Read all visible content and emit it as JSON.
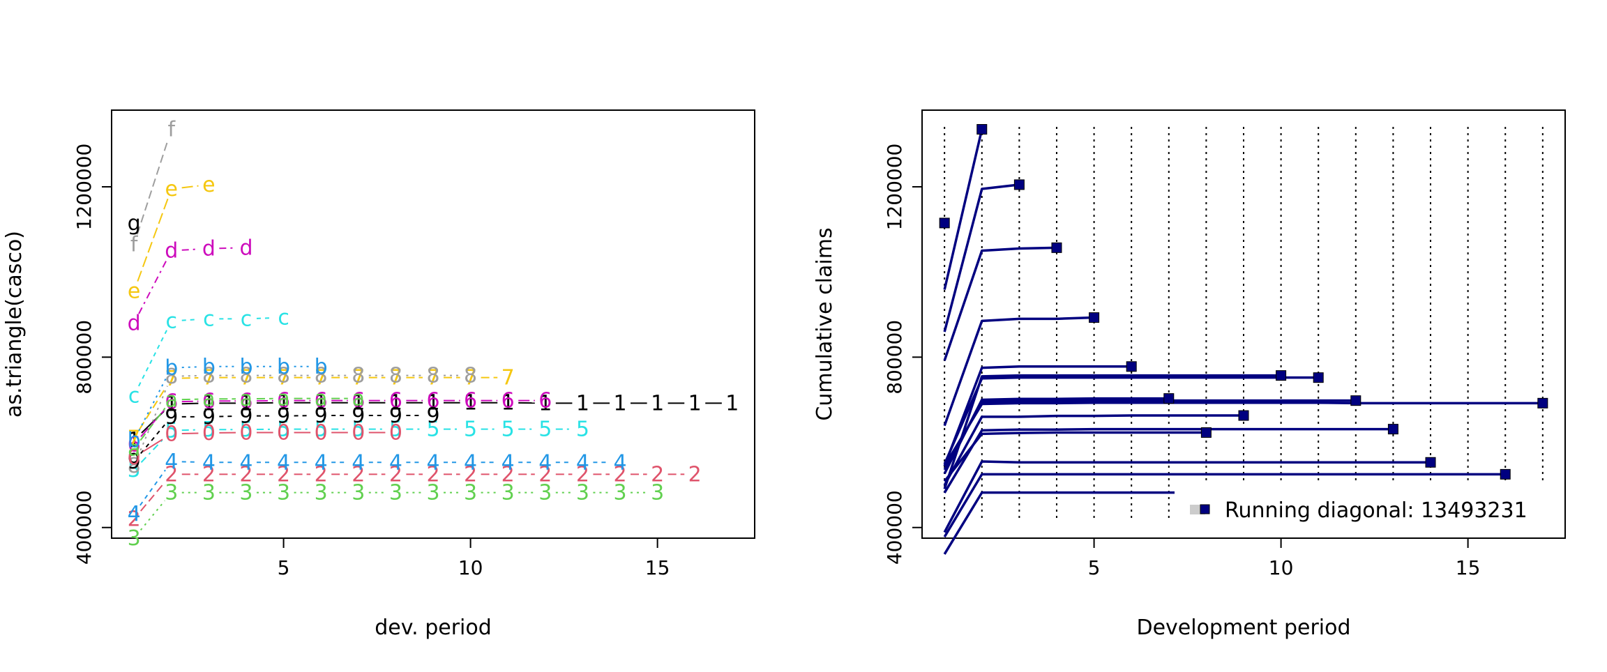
{
  "chart_data": [
    {
      "type": "line",
      "xlabel": "dev. period",
      "ylabel": "as.triangle(casco)",
      "xlim": [
        0.4,
        17.6
      ],
      "ylim": [
        375000,
        1380000
      ],
      "x_ticks": [
        5,
        10,
        15
      ],
      "y_ticks": [
        400000,
        800000,
        1200000
      ],
      "grid": false,
      "series": [
        {
          "label": "1",
          "color": "#000000",
          "values": [
            605000,
            690000,
            692000,
            692000,
            693000,
            693000,
            693000,
            693000,
            693000,
            693000,
            693000,
            692000,
            692000,
            692000,
            692000,
            692000,
            692000
          ]
        },
        {
          "label": "2",
          "color": "#DF536B",
          "values": [
            420000,
            525000,
            525000,
            525000,
            525000,
            525000,
            525000,
            525000,
            525000,
            525000,
            525000,
            525000,
            525000,
            525000,
            525000,
            525000
          ]
        },
        {
          "label": "3",
          "color": "#61D04F",
          "values": [
            375000,
            482000,
            482000,
            482000,
            482000,
            482000,
            482000,
            482000,
            482000,
            482000,
            482000,
            482000,
            482000,
            482000,
            482000
          ]
        },
        {
          "label": "4",
          "color": "#2297E6",
          "values": [
            432000,
            555000,
            553000,
            553000,
            553000,
            553000,
            553000,
            553000,
            553000,
            553000,
            553000,
            553000,
            553000,
            553000
          ]
        },
        {
          "label": "5",
          "color": "#28E2E5",
          "values": [
            535000,
            628000,
            630000,
            630000,
            631000,
            631000,
            631000,
            631000,
            631000,
            631000,
            631000,
            631000,
            631000
          ]
        },
        {
          "label": "6",
          "color": "#CD0BBC",
          "values": [
            595000,
            695000,
            697000,
            697000,
            698000,
            698000,
            698000,
            698000,
            698000,
            698000,
            698000,
            698000
          ]
        },
        {
          "label": "7",
          "color": "#F5C710",
          "values": [
            610000,
            750000,
            752000,
            752000,
            752000,
            752000,
            752000,
            752000,
            752000,
            752000,
            752000
          ]
        },
        {
          "label": "8",
          "color": "#9E9E9E",
          "values": [
            545000,
            755000,
            757000,
            757000,
            757000,
            757000,
            757000,
            757000,
            757000,
            757000
          ]
        },
        {
          "label": "9",
          "color": "#000000",
          "values": [
            555000,
            660000,
            660000,
            662000,
            662000,
            663000,
            663000,
            663000,
            663000
          ]
        },
        {
          "label": "0",
          "color": "#DF536B",
          "values": [
            565000,
            620000,
            622000,
            623000,
            623000,
            623000,
            623000,
            623000
          ]
        },
        {
          "label": "a",
          "color": "#61D04F",
          "values": [
            585000,
            700000,
            702000,
            702000,
            703000,
            703000,
            703000
          ]
        },
        {
          "label": "b",
          "color": "#2297E6",
          "values": [
            605000,
            775000,
            778000,
            778000,
            778000,
            778000
          ]
        },
        {
          "label": "c",
          "color": "#28E2E5",
          "values": [
            710000,
            885000,
            890000,
            890000,
            893000
          ]
        },
        {
          "label": "d",
          "color": "#CD0BBC",
          "values": [
            880000,
            1050000,
            1055000,
            1057000
          ]
        },
        {
          "label": "e",
          "color": "#F5C710",
          "values": [
            955000,
            1195000,
            1205000
          ]
        },
        {
          "label": "f",
          "color": "#9E9E9E",
          "values": [
            1065000,
            1335000
          ]
        },
        {
          "label": "g",
          "color": "#000000",
          "values": [
            1115000
          ]
        }
      ]
    },
    {
      "type": "line",
      "xlabel": "Development period",
      "ylabel": "Cumulative claims",
      "xlim": [
        0.4,
        17.6
      ],
      "ylim": [
        375000,
        1380000
      ],
      "x_ticks": [
        5,
        10,
        15
      ],
      "y_ticks": [
        400000,
        800000,
        1200000
      ],
      "grid": "vertical dotted lines at each development period",
      "line_color": "#000080",
      "legend": {
        "text": "Running diagonal: 13493231",
        "position": "bottom-right"
      },
      "series_ref": "same data as panel 1"
    }
  ]
}
